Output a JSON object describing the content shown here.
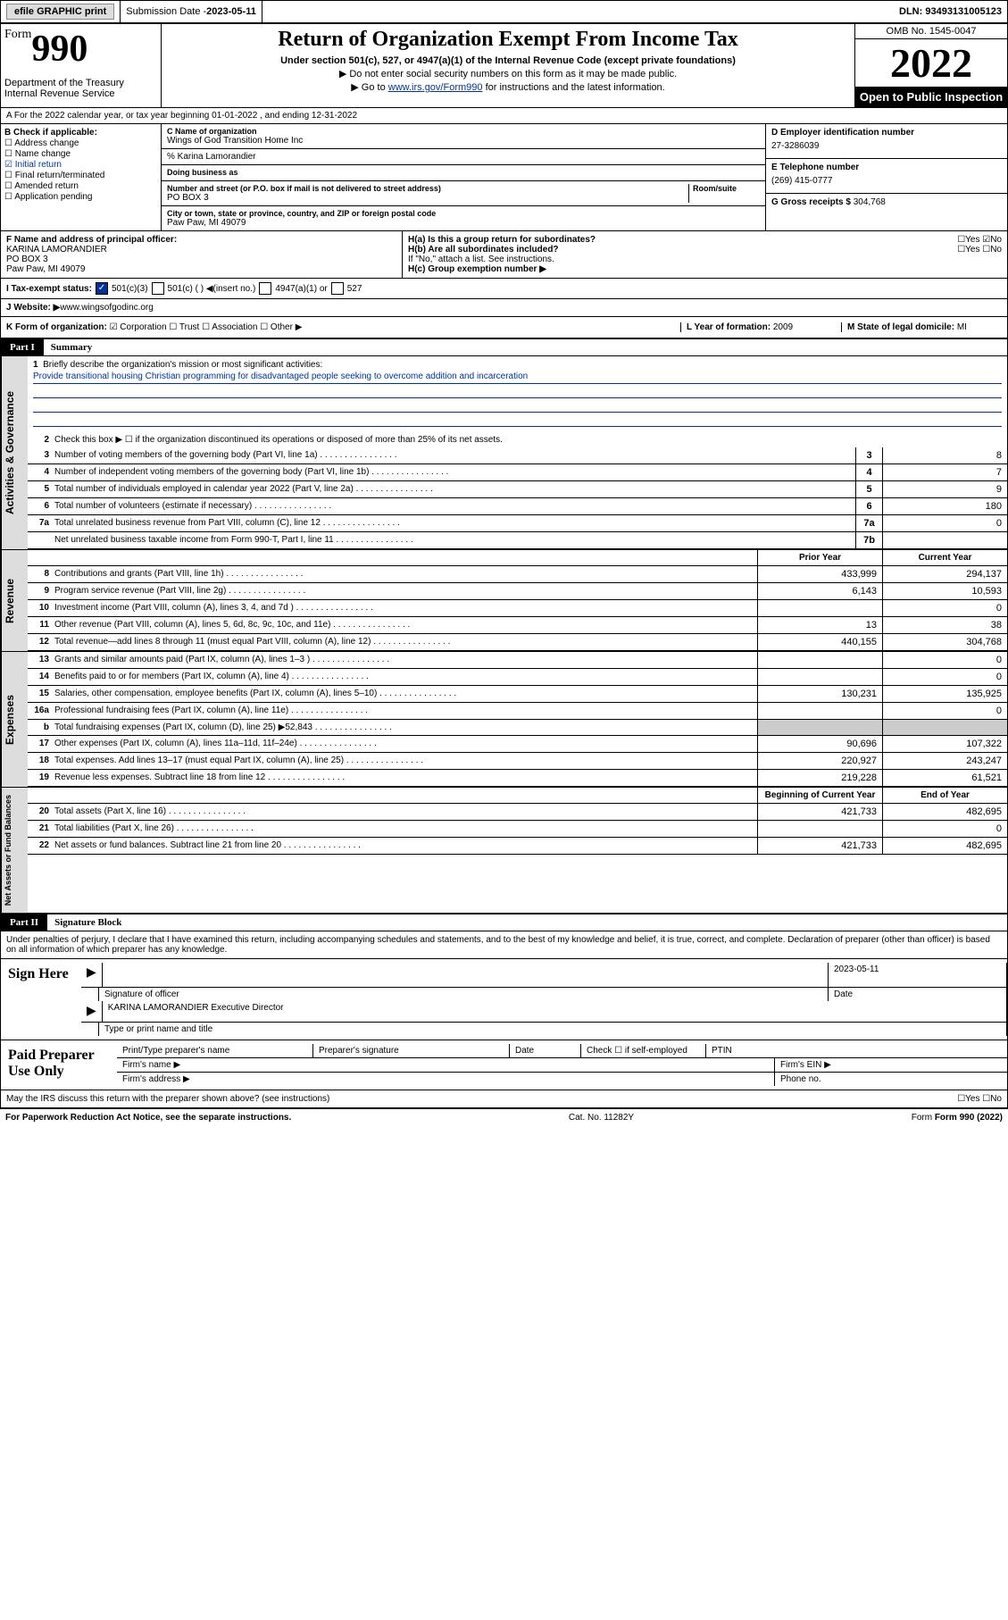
{
  "topbar": {
    "efile": "efile GRAPHIC print",
    "subdate_lbl": "Submission Date - ",
    "subdate": "2023-05-11",
    "dln": "DLN: 93493131005123"
  },
  "header": {
    "form_prefix": "Form",
    "form_no": "990",
    "dept": "Department of the Treasury Internal Revenue Service",
    "title": "Return of Organization Exempt From Income Tax",
    "subtitle": "Under section 501(c), 527, or 4947(a)(1) of the Internal Revenue Code (except private foundations)",
    "note1": "▶ Do not enter social security numbers on this form as it may be made public.",
    "note2_pre": "▶ Go to ",
    "note2_link": "www.irs.gov/Form990",
    "note2_post": " for instructions and the latest information.",
    "omb": "OMB No. 1545-0047",
    "year": "2022",
    "open": "Open to Public Inspection"
  },
  "secA": {
    "period": "A For the 2022 calendar year, or tax year beginning 01-01-2022  , and ending 12-31-2022",
    "b_lbl": "B Check if applicable:",
    "b_items": [
      "Address change",
      "Name change",
      "Initial return",
      "Final return/terminated",
      "Amended return",
      "Application pending"
    ],
    "b_checked_idx": 2,
    "c_lbl": "C Name of organization",
    "c_name": "Wings of God Transition Home Inc",
    "c_care": "% Karina Lamorandier",
    "dba_lbl": "Doing business as",
    "addr_lbl": "Number and street (or P.O. box if mail is not delivered to street address)",
    "room_lbl": "Room/suite",
    "addr": "PO BOX 3",
    "city_lbl": "City or town, state or province, country, and ZIP or foreign postal code",
    "city": "Paw Paw, MI  49079",
    "d_lbl": "D Employer identification number",
    "d_ein": "27-3286039",
    "e_lbl": "E Telephone number",
    "e_tel": "(269) 415-0777",
    "g_lbl": "G Gross receipts $ ",
    "g_val": "304,768",
    "f_lbl": "F Name and address of principal officer:",
    "f_name": "KARINA LAMORANDIER",
    "f_addr": "PO BOX 3\nPaw Paw, MI  49079",
    "ha_lbl": "H(a)  Is this a group return for subordinates?",
    "ha_ans": "☐Yes ☑No",
    "hb_lbl": "H(b)  Are all subordinates included?",
    "hb_ans": "☐Yes ☐No",
    "hb_note": "If \"No,\" attach a list. See instructions.",
    "hc_lbl": "H(c)  Group exemption number ▶",
    "i_lbl": "I  Tax-exempt status:",
    "i_501c3": "501(c)(3)",
    "i_501c": "501(c) (  ) ◀(insert no.)",
    "i_4947": "4947(a)(1) or",
    "i_527": "527",
    "j_lbl": "J  Website: ▶ ",
    "j_site": "www.wingsofgodinc.org",
    "k_lbl": "K Form of organization:",
    "k_opts": "☑ Corporation  ☐ Trust  ☐ Association  ☐ Other ▶",
    "l_lbl": "L Year of formation: ",
    "l_val": "2009",
    "m_lbl": "M State of legal domicile: ",
    "m_val": "MI"
  },
  "part1": {
    "hdr": "Part I",
    "title": "Summary",
    "tabs": {
      "gov": "Activities & Governance",
      "rev": "Revenue",
      "exp": "Expenses",
      "net": "Net Assets or Fund Balances"
    },
    "line1_lbl": "Briefly describe the organization's mission or most significant activities:",
    "line1_txt": "Provide transitional housing Christian programming for disadvantaged people seeking to overcome addition and incarceration",
    "line2": "Check this box ▶ ☐  if the organization discontinued its operations or disposed of more than 25% of its net assets.",
    "rows_single": [
      {
        "n": "3",
        "d": "Number of voting members of the governing body (Part VI, line 1a)",
        "b": "3",
        "v": "8"
      },
      {
        "n": "4",
        "d": "Number of independent voting members of the governing body (Part VI, line 1b)",
        "b": "4",
        "v": "7"
      },
      {
        "n": "5",
        "d": "Total number of individuals employed in calendar year 2022 (Part V, line 2a)",
        "b": "5",
        "v": "9"
      },
      {
        "n": "6",
        "d": "Total number of volunteers (estimate if necessary)",
        "b": "6",
        "v": "180"
      },
      {
        "n": "7a",
        "d": "Total unrelated business revenue from Part VIII, column (C), line 12",
        "b": "7a",
        "v": "0"
      },
      {
        "n": "",
        "d": "Net unrelated business taxable income from Form 990-T, Part I, line 11",
        "b": "7b",
        "v": ""
      }
    ],
    "col_hdrs": {
      "prior": "Prior Year",
      "curr": "Current Year",
      "beg": "Beginning of Current Year",
      "end": "End of Year"
    },
    "rev_rows": [
      {
        "n": "8",
        "d": "Contributions and grants (Part VIII, line 1h)",
        "p": "433,999",
        "c": "294,137"
      },
      {
        "n": "9",
        "d": "Program service revenue (Part VIII, line 2g)",
        "p": "6,143",
        "c": "10,593"
      },
      {
        "n": "10",
        "d": "Investment income (Part VIII, column (A), lines 3, 4, and 7d )",
        "p": "",
        "c": "0"
      },
      {
        "n": "11",
        "d": "Other revenue (Part VIII, column (A), lines 5, 6d, 8c, 9c, 10c, and 11e)",
        "p": "13",
        "c": "38"
      },
      {
        "n": "12",
        "d": "Total revenue—add lines 8 through 11 (must equal Part VIII, column (A), line 12)",
        "p": "440,155",
        "c": "304,768"
      }
    ],
    "exp_rows": [
      {
        "n": "13",
        "d": "Grants and similar amounts paid (Part IX, column (A), lines 1–3 )",
        "p": "",
        "c": "0"
      },
      {
        "n": "14",
        "d": "Benefits paid to or for members (Part IX, column (A), line 4)",
        "p": "",
        "c": "0"
      },
      {
        "n": "15",
        "d": "Salaries, other compensation, employee benefits (Part IX, column (A), lines 5–10)",
        "p": "130,231",
        "c": "135,925"
      },
      {
        "n": "16a",
        "d": "Professional fundraising fees (Part IX, column (A), line 11e)",
        "p": "",
        "c": "0"
      },
      {
        "n": "b",
        "d": "Total fundraising expenses (Part IX, column (D), line 25) ▶52,843",
        "p": "—",
        "c": "—"
      },
      {
        "n": "17",
        "d": "Other expenses (Part IX, column (A), lines 11a–11d, 11f–24e)",
        "p": "90,696",
        "c": "107,322"
      },
      {
        "n": "18",
        "d": "Total expenses. Add lines 13–17 (must equal Part IX, column (A), line 25)",
        "p": "220,927",
        "c": "243,247"
      },
      {
        "n": "19",
        "d": "Revenue less expenses. Subtract line 18 from line 12",
        "p": "219,228",
        "c": "61,521"
      }
    ],
    "net_rows": [
      {
        "n": "20",
        "d": "Total assets (Part X, line 16)",
        "p": "421,733",
        "c": "482,695"
      },
      {
        "n": "21",
        "d": "Total liabilities (Part X, line 26)",
        "p": "",
        "c": "0"
      },
      {
        "n": "22",
        "d": "Net assets or fund balances. Subtract line 21 from line 20",
        "p": "421,733",
        "c": "482,695"
      }
    ]
  },
  "part2": {
    "hdr": "Part II",
    "title": "Signature Block",
    "decl": "Under penalties of perjury, I declare that I have examined this return, including accompanying schedules and statements, and to the best of my knowledge and belief, it is true, correct, and complete. Declaration of preparer (other than officer) is based on all information of which preparer has any knowledge.",
    "sign_here": "Sign Here",
    "sig_officer": "Signature of officer",
    "sig_date_lbl": "Date",
    "sig_date": "2023-05-11",
    "sig_name": "KARINA LAMORANDIER  Executive Director",
    "sig_type": "Type or print name and title",
    "paid": "Paid Preparer Use Only",
    "prep_name": "Print/Type preparer's name",
    "prep_sig": "Preparer's signature",
    "prep_date": "Date",
    "prep_self": "Check ☐ if self-employed",
    "prep_ptin": "PTIN",
    "firm_name": "Firm's name  ▶",
    "firm_ein": "Firm's EIN ▶",
    "firm_addr": "Firm's address ▶",
    "firm_phone": "Phone no.",
    "may_irs": "May the IRS discuss this return with the preparer shown above? (see instructions)",
    "may_ans": "☐Yes  ☐No"
  },
  "footer": {
    "pra": "For Paperwork Reduction Act Notice, see the separate instructions.",
    "cat": "Cat. No. 11282Y",
    "form": "Form 990 (2022)"
  }
}
